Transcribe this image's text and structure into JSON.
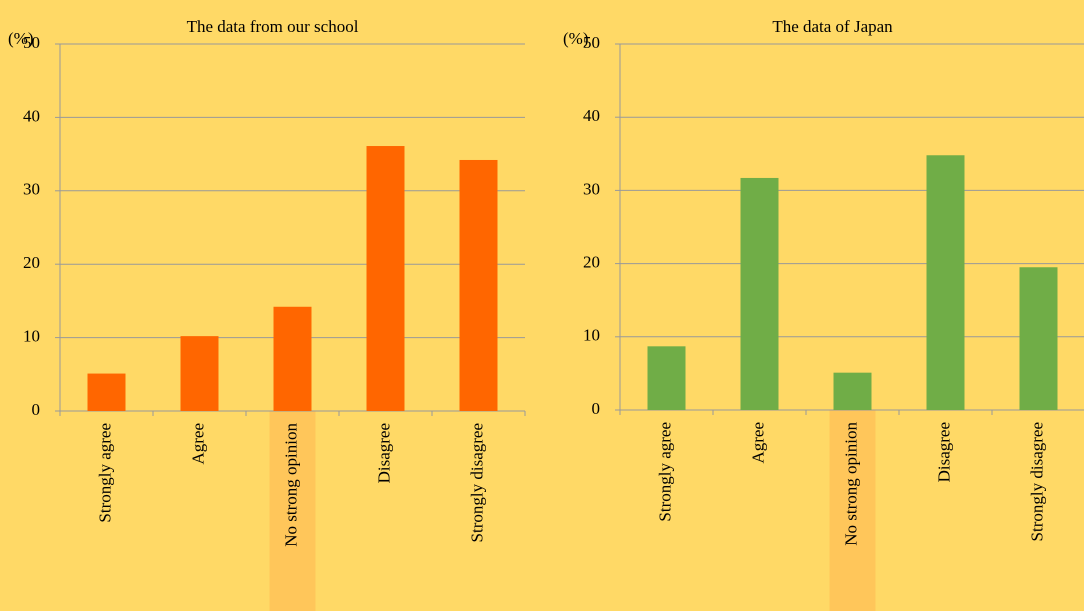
{
  "chart_data": [
    {
      "type": "bar",
      "title": "The data from our school",
      "y_unit": "(%)",
      "categories": [
        "Strongly agree",
        "Agree",
        "No strong opinion",
        "Disagree",
        "Strongly disagree"
      ],
      "values": [
        5.1,
        10.2,
        14.2,
        36.1,
        34.2
      ],
      "color": "#ff6600",
      "ylim": [
        0,
        50
      ],
      "yticks": [
        0,
        10,
        20,
        30,
        40,
        50
      ],
      "grid": true,
      "highlight": {
        "category": 2,
        "color": "#ffc65a"
      }
    },
    {
      "type": "bar",
      "title": "The data of Japan",
      "y_unit": "(%)",
      "categories": [
        "Strongly agree",
        "Agree",
        "No strong opinion",
        "Disagree",
        "Strongly disagree"
      ],
      "values": [
        8.7,
        31.7,
        5.1,
        34.8,
        19.5
      ],
      "color": "#70ad47",
      "ylim": [
        0,
        50
      ],
      "yticks": [
        0,
        10,
        20,
        30,
        40,
        50
      ],
      "grid": true,
      "highlight": {
        "category": 2,
        "color": "#ffc65a"
      }
    }
  ]
}
